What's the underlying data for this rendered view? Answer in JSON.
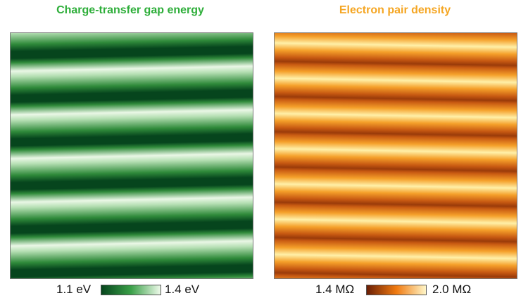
{
  "panels": [
    {
      "title": "Charge-transfer gap energy",
      "title_color": "#2eae3a",
      "scale_min": "1.1 eV",
      "scale_max": "1.4 eV"
    },
    {
      "title": "Electron pair density",
      "title_color": "#f5a623",
      "scale_min": "1.4 MΩ",
      "scale_max": "2.0 MΩ"
    }
  ]
}
